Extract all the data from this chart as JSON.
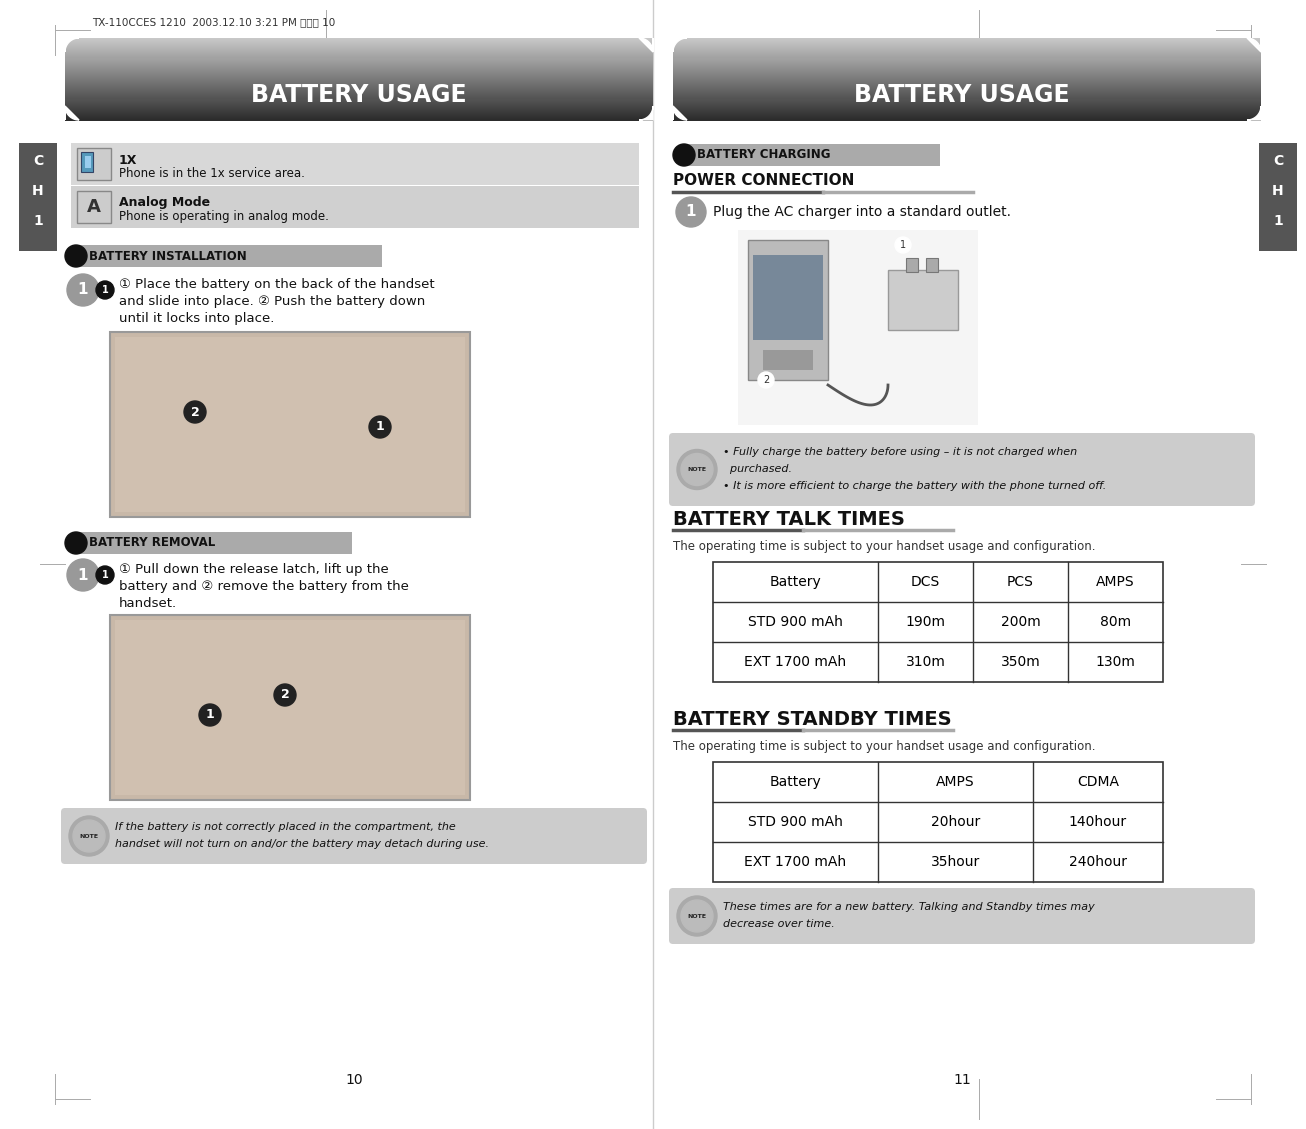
{
  "bg_color": "#ffffff",
  "left_page": {
    "header_text": "BATTERY USAGE",
    "icon1_label": "1X",
    "icon1_desc": "Phone is in the 1x service area.",
    "icon2_label": "Analog Mode",
    "icon2_desc": "Phone is operating in analog mode.",
    "section1_title": "BATTERY INSTALLATION",
    "step1_text1": "① Place the battery on the back of the handset",
    "step1_text2": "and slide into place. ② Push the battery down",
    "step1_text3": "until it locks into place.",
    "section2_title": "BATTERY REMOVAL",
    "step2_text1": "① Pull down the release latch, lift up the",
    "step2_text2": "battery and ② remove the battery from the",
    "step2_text3": "handset.",
    "note_text1": "If the battery is not correctly placed in the compartment, the",
    "note_text2": "handset will not turn on and/or the battery may detach during use.",
    "page_num": "10"
  },
  "right_page": {
    "header_text": "BATTERY USAGE",
    "section_title": "BATTERY CHARGING",
    "power_title": "POWER CONNECTION",
    "step1_text": "Plug the AC charger into a standard outlet.",
    "note_text1": "Fully charge the battery before using – it is not charged when",
    "note_text2": "purchased.",
    "note_text3": "It is more efficient to charge the battery with the phone turned off.",
    "talk_title": "BATTERY TALK TIMES",
    "talk_subtitle": "The operating time is subject to your handset usage and configuration.",
    "talk_headers": [
      "Battery",
      "DCS",
      "PCS",
      "AMPS"
    ],
    "talk_row1": [
      "STD 900 mAh",
      "190m",
      "200m",
      "80m"
    ],
    "talk_row2": [
      "EXT 1700 mAh",
      "310m",
      "350m",
      "130m"
    ],
    "standby_title": "BATTERY STANDBY TIMES",
    "standby_subtitle": "The operating time is subject to your handset usage and configuration.",
    "standby_headers": [
      "Battery",
      "AMPS",
      "CDMA"
    ],
    "standby_row1": [
      "STD 900 mAh",
      "20hour",
      "140hour"
    ],
    "standby_row2": [
      "EXT 1700 mAh",
      "35hour",
      "240hour"
    ],
    "note2_text1": "These times are for a new battery. Talking and Standby times may",
    "note2_text2": "decrease over time.",
    "page_num": "11"
  },
  "header_grad_top": "#c8c8c8",
  "header_grad_bottom": "#2a2a2a",
  "ch_tab_color": "#555555",
  "section_header_bg": "#aaaaaa",
  "section_dot_color": "#111111",
  "note_bg": "#d0d0d0",
  "icon_bg": "#d8d8d8",
  "table_border": "#333333",
  "table_header_bg": "#f5f5f5",
  "divider_color": "#cccccc"
}
